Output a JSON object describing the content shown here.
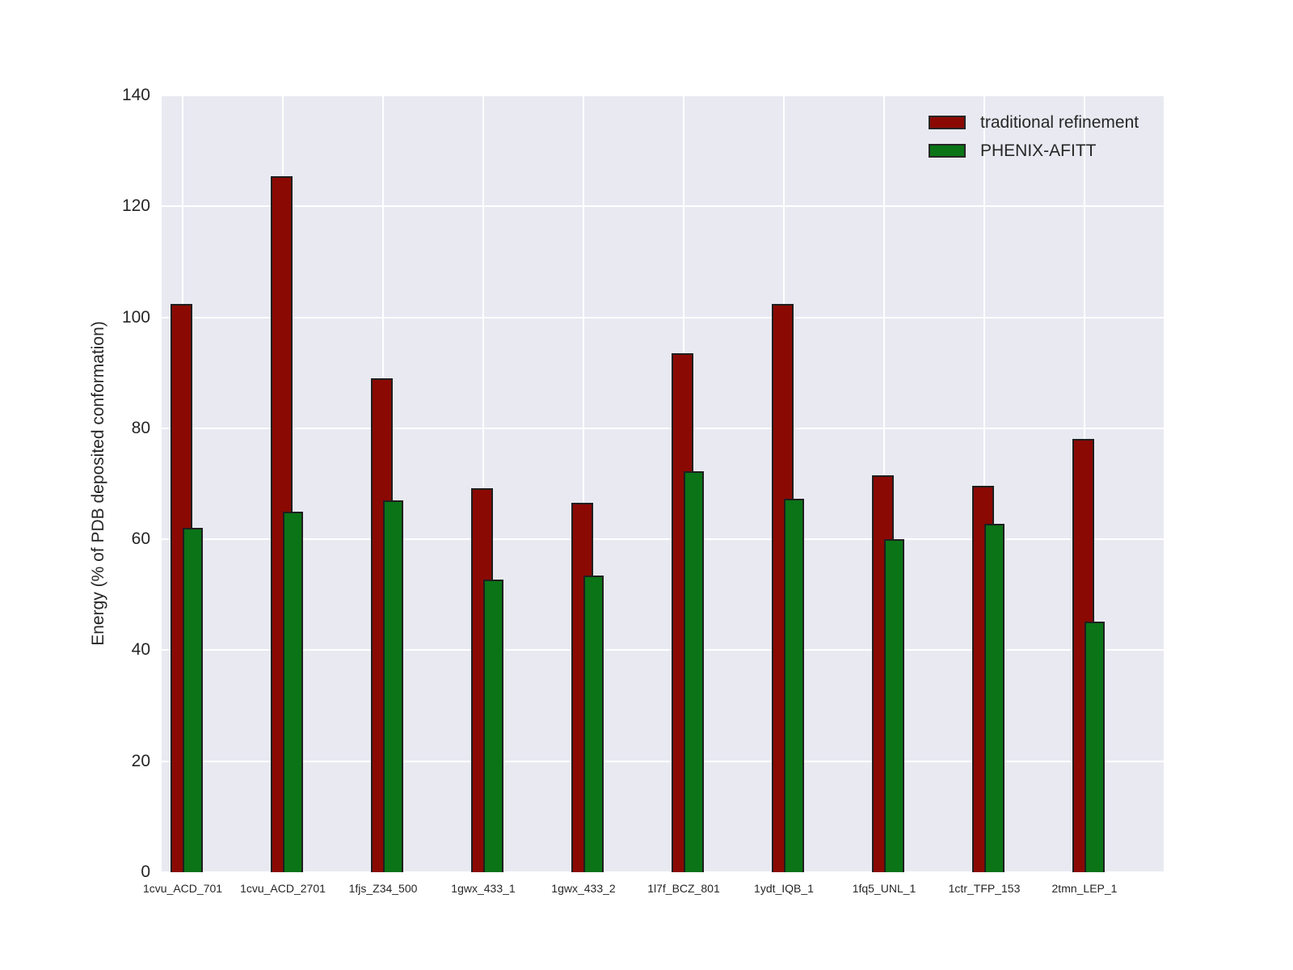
{
  "figure": {
    "background": "#ffffff",
    "plot_background": "#e9e9f2",
    "grid_color": "#ffffff",
    "text_color": "#262626"
  },
  "chart_data": {
    "type": "bar",
    "title": "",
    "xlabel": "",
    "ylabel": "Energy (% of PDB deposited conformation)",
    "ylim": [
      0,
      140
    ],
    "yticks": [
      0,
      20,
      40,
      60,
      80,
      100,
      120,
      140
    ],
    "grid": true,
    "grid_style": "seaborn-darkgrid",
    "legend_position": "upper right",
    "bar_edge_color": "#1f1f1f",
    "bar_style": "overlapping-pairs",
    "categories": [
      "1cvu_ACD_701",
      "1cvu_ACD_2701",
      "1fjs_Z34_500",
      "1gwx_433_1",
      "1gwx_433_2",
      "1l7f_BCZ_801",
      "1ydt_IQB_1",
      "1fq5_UNL_1",
      "1ctr_TFP_153",
      "2tmn_LEP_1"
    ],
    "series": [
      {
        "name": "traditional refinement",
        "color": "#8b0903",
        "values": [
          102.4,
          125.4,
          89.0,
          69.2,
          66.6,
          93.5,
          102.4,
          71.5,
          69.6,
          78.1
        ]
      },
      {
        "name": "PHENIX-AFITT",
        "color": "#0a7417",
        "values": [
          62.1,
          65.0,
          67.0,
          52.7,
          53.5,
          72.3,
          67.3,
          60.0,
          62.8,
          45.1
        ]
      }
    ]
  }
}
